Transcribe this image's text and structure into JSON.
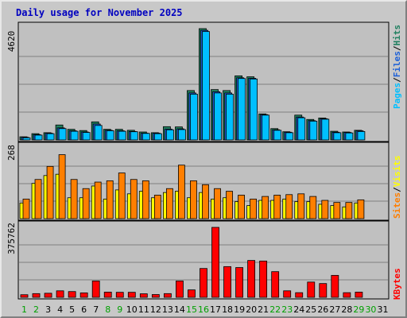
{
  "title": "Daily usage for November 2025",
  "colors": {
    "title": "#0000c0",
    "pages": "#00bfff",
    "files": "#1c60d8",
    "hits": "#208060",
    "sites": "#ff7f00",
    "visits": "#ffff00",
    "kbytes": "#ff0000",
    "weekend_day": "#00a000",
    "weekday": "#000000",
    "panel_bg": "#c0c0c0",
    "gridline": "#808080"
  },
  "right_labels": {
    "pages": "Pages",
    "files": "Files",
    "hits": "Hits",
    "sites": "Sites",
    "visits": "Visits",
    "kbytes": "KBytes",
    "sep": "/"
  },
  "chart_data": [
    {
      "type": "bar",
      "panel": "hits-files-pages",
      "ymax_label": "4620",
      "ylim": [
        0,
        4620
      ],
      "x": [
        "1",
        "2",
        "3",
        "4",
        "5",
        "6",
        "7",
        "8",
        "9",
        "10",
        "11",
        "12",
        "13",
        "14",
        "15",
        "16",
        "17",
        "18",
        "19",
        "20",
        "21",
        "22",
        "23",
        "24",
        "25",
        "26",
        "27",
        "28",
        "29",
        "30",
        "31"
      ],
      "weekend": [
        "1",
        "2",
        "8",
        "9",
        "15",
        "16",
        "22",
        "23",
        "29",
        "30"
      ],
      "series": [
        {
          "name": "Hits",
          "values": [
            130,
            260,
            300,
            620,
            440,
            390,
            750,
            440,
            440,
            400,
            330,
            300,
            550,
            540,
            2050,
            4620,
            2090,
            2050,
            2660,
            2620,
            1080,
            470,
            340,
            1030,
            850,
            910,
            360,
            330,
            400,
            0,
            0
          ]
        },
        {
          "name": "Files",
          "values": [
            110,
            220,
            280,
            500,
            380,
            330,
            660,
            400,
            380,
            350,
            280,
            280,
            450,
            460,
            1950,
            4550,
            2000,
            1950,
            2580,
            2560,
            1050,
            420,
            320,
            950,
            800,
            880,
            320,
            310,
            380,
            0,
            0
          ]
        },
        {
          "name": "Pages",
          "values": [
            90,
            200,
            260,
            470,
            360,
            310,
            600,
            380,
            360,
            340,
            270,
            260,
            420,
            430,
            1900,
            4500,
            1950,
            1900,
            2550,
            2530,
            1030,
            400,
            300,
            920,
            780,
            860,
            300,
            290,
            350,
            0,
            0
          ]
        }
      ]
    },
    {
      "type": "bar",
      "panel": "visits-sites",
      "ymax_label": "268",
      "ylim": [
        0,
        268
      ],
      "x": [
        "1",
        "2",
        "3",
        "4",
        "5",
        "6",
        "7",
        "8",
        "9",
        "10",
        "11",
        "12",
        "13",
        "14",
        "15",
        "16",
        "17",
        "18",
        "19",
        "20",
        "21",
        "22",
        "23",
        "24",
        "25",
        "26",
        "27",
        "28",
        "29",
        "30",
        "31"
      ],
      "series": [
        {
          "name": "Visits",
          "values": [
            60,
            135,
            165,
            170,
            80,
            80,
            125,
            75,
            110,
            95,
            105,
            80,
            100,
            105,
            80,
            100,
            75,
            80,
            65,
            50,
            70,
            70,
            75,
            65,
            65,
            55,
            50,
            45,
            60,
            0,
            0
          ]
        },
        {
          "name": "Sites",
          "values": [
            75,
            150,
            200,
            245,
            150,
            115,
            140,
            145,
            175,
            150,
            145,
            90,
            115,
            205,
            145,
            130,
            115,
            105,
            90,
            75,
            85,
            90,
            92,
            95,
            85,
            70,
            62,
            62,
            72,
            0,
            0
          ]
        }
      ]
    },
    {
      "type": "bar",
      "panel": "kbytes",
      "ymax_label": "375762",
      "ylim": [
        0,
        375762
      ],
      "x": [
        "1",
        "2",
        "3",
        "4",
        "5",
        "6",
        "7",
        "8",
        "9",
        "10",
        "11",
        "12",
        "13",
        "14",
        "15",
        "16",
        "17",
        "18",
        "19",
        "20",
        "21",
        "22",
        "23",
        "24",
        "25",
        "26",
        "27",
        "28",
        "29",
        "30",
        "31"
      ],
      "series": [
        {
          "name": "KBytes",
          "values": [
            14000,
            20000,
            22000,
            35000,
            31000,
            24000,
            88000,
            28000,
            27000,
            27000,
            19000,
            15000,
            20000,
            88000,
            40000,
            155000,
            375762,
            165000,
            160000,
            198000,
            195000,
            138000,
            35000,
            25000,
            82000,
            74000,
            118000,
            25000,
            28000,
            0,
            0
          ]
        }
      ]
    }
  ]
}
